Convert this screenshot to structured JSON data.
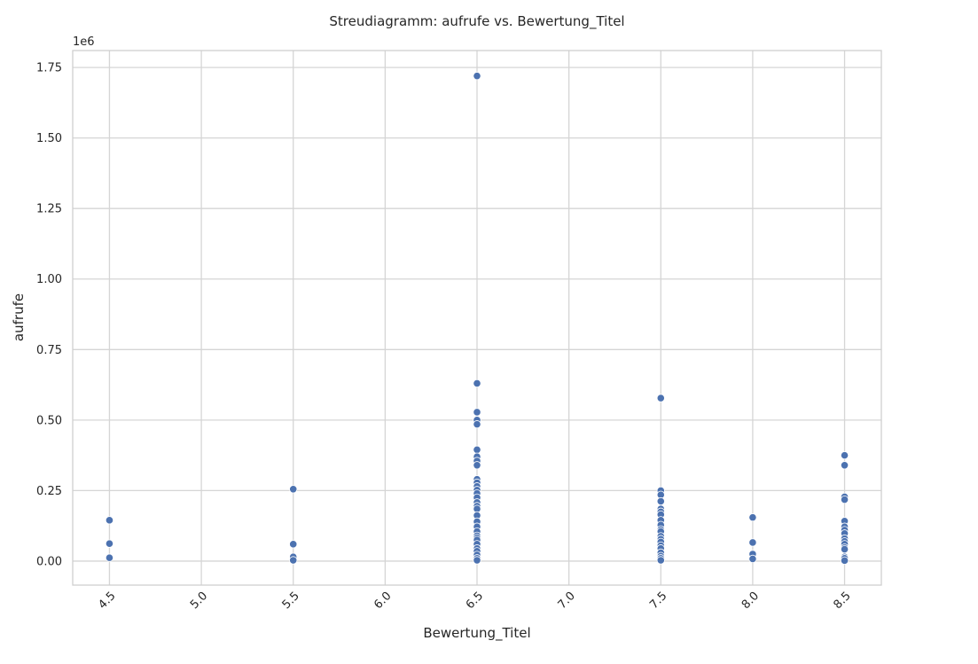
{
  "chart_data": {
    "type": "scatter",
    "title": "Streudiagramm: aufrufe vs. Bewertung_Titel",
    "xlabel": "Bewertung_Titel",
    "ylabel": "aufrufe",
    "y_offset_label": "1e6",
    "xlim": [
      4.3,
      8.7
    ],
    "ylim": [
      -85000,
      1810000
    ],
    "x_ticks": [
      "4.5",
      "5.0",
      "5.5",
      "6.0",
      "6.5",
      "7.0",
      "7.5",
      "8.0",
      "8.5"
    ],
    "y_ticks": [
      "0.00",
      "0.25",
      "0.50",
      "0.75",
      "1.00",
      "1.25",
      "1.50",
      "1.75"
    ],
    "grid": true,
    "color": "#4c72b0",
    "points": [
      {
        "x": 4.5,
        "y": 145000
      },
      {
        "x": 4.5,
        "y": 62000
      },
      {
        "x": 4.5,
        "y": 12000
      },
      {
        "x": 5.5,
        "y": 255000
      },
      {
        "x": 5.5,
        "y": 60000
      },
      {
        "x": 5.5,
        "y": 15000
      },
      {
        "x": 5.5,
        "y": 3000
      },
      {
        "x": 6.5,
        "y": 1720000
      },
      {
        "x": 6.5,
        "y": 630000
      },
      {
        "x": 6.5,
        "y": 528000
      },
      {
        "x": 6.5,
        "y": 500000
      },
      {
        "x": 6.5,
        "y": 485000
      },
      {
        "x": 6.5,
        "y": 395000
      },
      {
        "x": 6.5,
        "y": 370000
      },
      {
        "x": 6.5,
        "y": 355000
      },
      {
        "x": 6.5,
        "y": 340000
      },
      {
        "x": 6.5,
        "y": 290000
      },
      {
        "x": 6.5,
        "y": 278000
      },
      {
        "x": 6.5,
        "y": 265000
      },
      {
        "x": 6.5,
        "y": 252000
      },
      {
        "x": 6.5,
        "y": 240000
      },
      {
        "x": 6.5,
        "y": 225000
      },
      {
        "x": 6.5,
        "y": 208000
      },
      {
        "x": 6.5,
        "y": 195000
      },
      {
        "x": 6.5,
        "y": 185000
      },
      {
        "x": 6.5,
        "y": 162000
      },
      {
        "x": 6.5,
        "y": 140000
      },
      {
        "x": 6.5,
        "y": 122000
      },
      {
        "x": 6.5,
        "y": 105000
      },
      {
        "x": 6.5,
        "y": 90000
      },
      {
        "x": 6.5,
        "y": 82000
      },
      {
        "x": 6.5,
        "y": 75000
      },
      {
        "x": 6.5,
        "y": 60000
      },
      {
        "x": 6.5,
        "y": 45000
      },
      {
        "x": 6.5,
        "y": 35000
      },
      {
        "x": 6.5,
        "y": 22000
      },
      {
        "x": 6.5,
        "y": 10000
      },
      {
        "x": 6.5,
        "y": 3000
      },
      {
        "x": 7.5,
        "y": 578000
      },
      {
        "x": 7.5,
        "y": 250000
      },
      {
        "x": 7.5,
        "y": 235000
      },
      {
        "x": 7.5,
        "y": 212000
      },
      {
        "x": 7.5,
        "y": 185000
      },
      {
        "x": 7.5,
        "y": 175000
      },
      {
        "x": 7.5,
        "y": 165000
      },
      {
        "x": 7.5,
        "y": 145000
      },
      {
        "x": 7.5,
        "y": 128000
      },
      {
        "x": 7.5,
        "y": 112000
      },
      {
        "x": 7.5,
        "y": 105000
      },
      {
        "x": 7.5,
        "y": 88000
      },
      {
        "x": 7.5,
        "y": 78000
      },
      {
        "x": 7.5,
        "y": 68000
      },
      {
        "x": 7.5,
        "y": 55000
      },
      {
        "x": 7.5,
        "y": 45000
      },
      {
        "x": 7.5,
        "y": 30000
      },
      {
        "x": 7.5,
        "y": 18000
      },
      {
        "x": 7.5,
        "y": 10000
      },
      {
        "x": 7.5,
        "y": 3000
      },
      {
        "x": 8.0,
        "y": 155000
      },
      {
        "x": 8.0,
        "y": 66000
      },
      {
        "x": 8.0,
        "y": 25000
      },
      {
        "x": 8.0,
        "y": 8000
      },
      {
        "x": 8.5,
        "y": 375000
      },
      {
        "x": 8.5,
        "y": 340000
      },
      {
        "x": 8.5,
        "y": 228000
      },
      {
        "x": 8.5,
        "y": 218000
      },
      {
        "x": 8.5,
        "y": 142000
      },
      {
        "x": 8.5,
        "y": 122000
      },
      {
        "x": 8.5,
        "y": 110000
      },
      {
        "x": 8.5,
        "y": 98000
      },
      {
        "x": 8.5,
        "y": 80000
      },
      {
        "x": 8.5,
        "y": 70000
      },
      {
        "x": 8.5,
        "y": 60000
      },
      {
        "x": 8.5,
        "y": 48000
      },
      {
        "x": 8.5,
        "y": 42000
      },
      {
        "x": 8.5,
        "y": 15000
      },
      {
        "x": 8.5,
        "y": 10000
      },
      {
        "x": 8.5,
        "y": 2000
      }
    ]
  }
}
